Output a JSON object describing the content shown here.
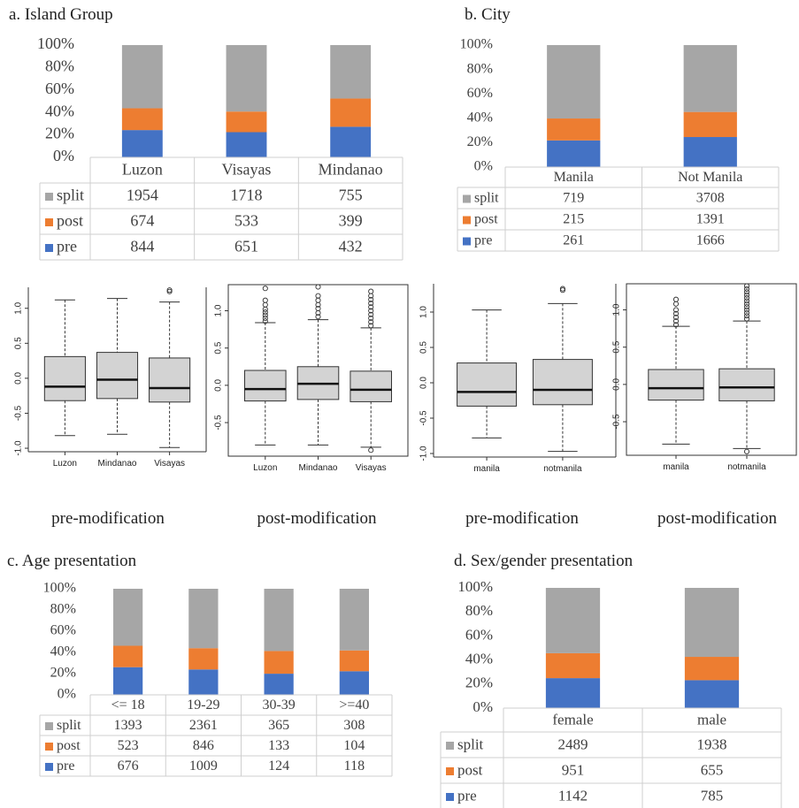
{
  "colors": {
    "split": "#A6A6A6",
    "post": "#ED7D31",
    "pre": "#4472C4",
    "box_fill": "#D3D3D3",
    "grid": "#CFCFCF"
  },
  "panel_titles": {
    "a": "a. Island Group",
    "b": "b. City",
    "c": "c. Age presentation",
    "d": "d. Sex/gender presentation"
  },
  "captions": [
    "pre-modification",
    "post-modification",
    "pre-modification",
    "post-modification"
  ],
  "chart_data": [
    {
      "type": "bar",
      "stacked": true,
      "percent": true,
      "title": "a. Island Group",
      "y_ticks": [
        "100%",
        "80%",
        "60%",
        "40%",
        "20%",
        "0%"
      ],
      "categories": [
        "Luzon",
        "Visayas",
        "Mindanao"
      ],
      "series": [
        {
          "name": "split",
          "values": [
            1954,
            1718,
            755
          ]
        },
        {
          "name": "post",
          "values": [
            674,
            533,
            399
          ]
        },
        {
          "name": "pre",
          "values": [
            844,
            651,
            432
          ]
        }
      ]
    },
    {
      "type": "bar",
      "stacked": true,
      "percent": true,
      "title": "b. City",
      "y_ticks": [
        "100%",
        "80%",
        "60%",
        "40%",
        "20%",
        "0%"
      ],
      "categories": [
        "Manila",
        "Not Manila"
      ],
      "series": [
        {
          "name": "split",
          "values": [
            719,
            3708
          ]
        },
        {
          "name": "post",
          "values": [
            215,
            1391
          ]
        },
        {
          "name": "pre",
          "values": [
            261,
            1666
          ]
        }
      ]
    },
    {
      "type": "box",
      "caption": "pre-modification",
      "categories": [
        "Luzon",
        "Mindanao",
        "Visayas"
      ],
      "y_ticks": [
        "1.0",
        "0.5",
        "0.0",
        "-0.5",
        "-1.0"
      ],
      "ylim": [
        -1.05,
        1.3
      ],
      "boxes": [
        {
          "min": -0.82,
          "q1": -0.32,
          "median": -0.12,
          "q3": 0.31,
          "max": 1.12,
          "outliers": []
        },
        {
          "min": -0.8,
          "q1": -0.29,
          "median": -0.02,
          "q3": 0.37,
          "max": 1.14,
          "outliers": []
        },
        {
          "min": -0.99,
          "q1": -0.34,
          "median": -0.14,
          "q3": 0.29,
          "max": 1.09,
          "outliers": [
            1.24,
            1.26
          ]
        }
      ]
    },
    {
      "type": "box",
      "caption": "post-modification",
      "categories": [
        "Luzon",
        "Mindanao",
        "Visayas"
      ],
      "y_ticks": [
        "1.0",
        "0.5",
        "0.0",
        "-0.5"
      ],
      "ylim": [
        -0.95,
        1.35
      ],
      "boxes": [
        {
          "min": -0.8,
          "q1": -0.21,
          "median": -0.05,
          "q3": 0.2,
          "max": 0.84,
          "outliers": [
            0.86,
            0.9,
            0.94,
            0.98,
            1.02,
            1.08,
            1.14,
            1.3
          ]
        },
        {
          "min": -0.8,
          "q1": -0.19,
          "median": 0.02,
          "q3": 0.25,
          "max": 0.88,
          "outliers": [
            0.92,
            0.97,
            1.03,
            1.08,
            1.14,
            1.2,
            1.32
          ]
        },
        {
          "min": -0.83,
          "q1": -0.22,
          "median": -0.06,
          "q3": 0.19,
          "max": 0.77,
          "outliers": [
            0.8,
            0.85,
            0.9,
            0.95,
            1.0,
            1.05,
            1.1,
            1.15,
            1.2,
            1.26,
            -0.87
          ]
        }
      ]
    },
    {
      "type": "box",
      "caption": "pre-modification",
      "categories": [
        "manila",
        "notmanila"
      ],
      "y_ticks": [
        "1.0",
        "0.5",
        "0.0",
        "-0.5",
        "-1.0"
      ],
      "ylim": [
        -1.05,
        1.4
      ],
      "boxes": [
        {
          "min": -0.78,
          "q1": -0.33,
          "median": -0.13,
          "q3": 0.28,
          "max": 1.03,
          "outliers": []
        },
        {
          "min": -0.97,
          "q1": -0.31,
          "median": -0.1,
          "q3": 0.33,
          "max": 1.12,
          "outliers": [
            1.31,
            1.33
          ]
        }
      ]
    },
    {
      "type": "box",
      "caption": "post-modification",
      "categories": [
        "manila",
        "notmanila"
      ],
      "y_ticks": [
        "1.0",
        "0.5",
        "0.0",
        "-0.5"
      ],
      "ylim": [
        -0.95,
        1.35
      ],
      "boxes": [
        {
          "min": -0.8,
          "q1": -0.21,
          "median": -0.05,
          "q3": 0.2,
          "max": 0.78,
          "outliers": [
            0.8,
            0.85,
            0.9,
            0.95,
            1.0,
            1.08,
            1.14
          ]
        },
        {
          "min": -0.86,
          "q1": -0.22,
          "median": -0.04,
          "q3": 0.21,
          "max": 0.85,
          "outliers": [
            0.88,
            0.92,
            0.96,
            1.0,
            1.04,
            1.08,
            1.12,
            1.16,
            1.2,
            1.24,
            1.28,
            1.32,
            -0.9
          ]
        }
      ]
    },
    {
      "type": "bar",
      "stacked": true,
      "percent": true,
      "title": "c. Age presentation",
      "y_ticks": [
        "100%",
        "80%",
        "60%",
        "40%",
        "20%",
        "0%"
      ],
      "categories": [
        "<= 18",
        "19-29",
        "30-39",
        ">=40"
      ],
      "series": [
        {
          "name": "split",
          "values": [
            1393,
            2361,
            365,
            308
          ]
        },
        {
          "name": "post",
          "values": [
            523,
            846,
            133,
            104
          ]
        },
        {
          "name": "pre",
          "values": [
            676,
            1009,
            124,
            118
          ]
        }
      ]
    },
    {
      "type": "bar",
      "stacked": true,
      "percent": true,
      "title": "d. Sex/gender presentation",
      "y_ticks": [
        "100%",
        "80%",
        "60%",
        "40%",
        "20%",
        "0%"
      ],
      "categories": [
        "female",
        "male"
      ],
      "series": [
        {
          "name": "split",
          "values": [
            2489,
            1938
          ]
        },
        {
          "name": "post",
          "values": [
            951,
            655
          ]
        },
        {
          "name": "pre",
          "values": [
            1142,
            785
          ]
        }
      ]
    }
  ]
}
